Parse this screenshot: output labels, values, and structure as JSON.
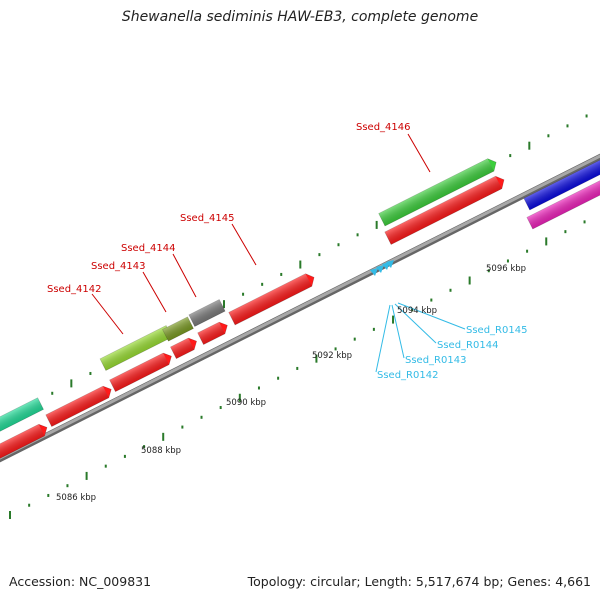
{
  "title": "Shewanella sediminis HAW-EB3, complete genome",
  "footer": {
    "accession": "Accession: NC_009831",
    "summary": "Topology: circular; Length: 5,517,674 bp; Genes: 4,661"
  },
  "colors": {
    "backbone": "#8a8a8a",
    "tick": "#2a7a2a",
    "cds_forward": "#3ccf3c",
    "cds_reverse": "#ff1a1a",
    "gene_label": "#cc0000",
    "rrna_label": "#33bbe6",
    "pseudogene": "#7a7a7a",
    "yellowgreen": "#99dd33",
    "olive": "#7a9a22",
    "teal": "#22dd99",
    "blue": "#0a0ae0",
    "magenta": "#ee22bb"
  },
  "scale_labels": [
    {
      "text": "5086 kbp"
    },
    {
      "text": "5088 kbp"
    },
    {
      "text": "5090 kbp"
    },
    {
      "text": "5092 kbp"
    },
    {
      "text": "5094 kbp"
    },
    {
      "text": "5096 kbp"
    }
  ],
  "gene_labels": [
    {
      "text": "Ssed_4142"
    },
    {
      "text": "Ssed_4143"
    },
    {
      "text": "Ssed_4144"
    },
    {
      "text": "Ssed_4145"
    },
    {
      "text": "Ssed_4146"
    }
  ],
  "rrna_labels": [
    {
      "text": "Ssed_R0142"
    },
    {
      "text": "Ssed_R0143"
    },
    {
      "text": "Ssed_R0144"
    },
    {
      "text": "Ssed_R0145"
    }
  ]
}
